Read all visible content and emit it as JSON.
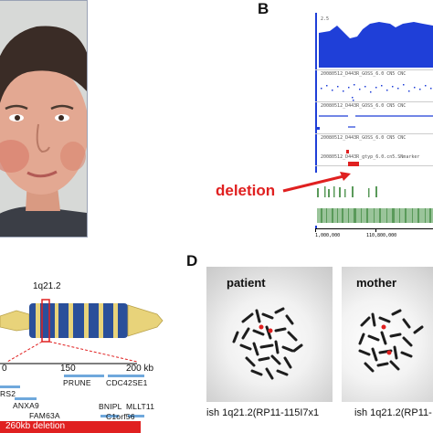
{
  "panels": {
    "b_letter": "B",
    "d_letter": "D"
  },
  "panel_b": {
    "scale_top": "2.5",
    "track_names": [
      "20080512_D443R_GOSS_6.0 CN5 CNC",
      "20080512_D443R_GOSS_6.0 CN5 CNC",
      "20080512_D443R_GOSS_6.0 CN5 CNC",
      "20080512_D443R_gtyp_6.0.cn5.SNmarker"
    ],
    "deletion_label": "deletion",
    "axis_left": "1,000,000",
    "axis_right": "110,800,000"
  },
  "panel_c": {
    "band_label": "1q21.2",
    "scale_labels": [
      "0",
      "150",
      "200 kb"
    ],
    "genes": [
      "RS2",
      "PRUNE",
      "CDC42SE1",
      "ANXA9",
      "FAM63A",
      "BNIPL",
      "MLLT11",
      "C1orf56"
    ],
    "deletion_label": "260kb deletion"
  },
  "panel_d": {
    "patient_label": "patient",
    "mother_label": "mother",
    "patient_ish": "ish 1q21.2(RP11-115I7x1",
    "mother_ish": "ish 1q21.2(RP11-"
  },
  "colors": {
    "blue": "#1f3fd8",
    "red": "#e02020",
    "green": "#5a9a5a",
    "chromosome_blue": "#2a4f9a",
    "chromosome_yellow": "#e8d37a",
    "gene_bar": "#6fa8dc"
  }
}
